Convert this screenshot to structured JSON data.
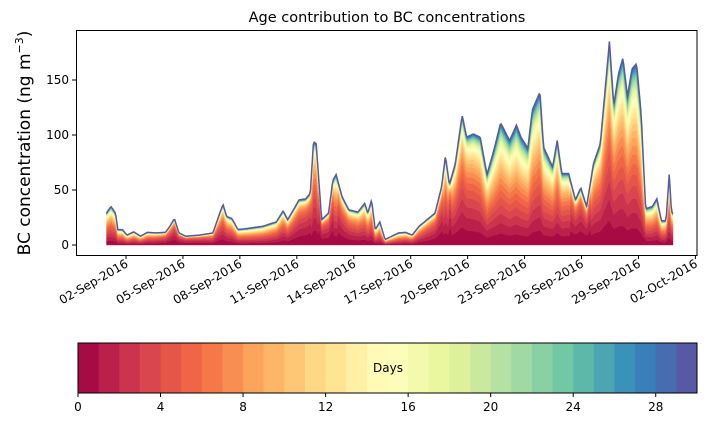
{
  "chart_data": {
    "type": "area",
    "title": "Age contribution to BC concentrations",
    "xlabel": "",
    "ylabel": "BC concentration (ng m",
    "ylabel_sup": "−3",
    "ylabel_close": ")",
    "ylim": [
      -9,
      195
    ],
    "yticks": [
      0,
      50,
      100,
      150
    ],
    "xlim_day_of_sep": [
      -0.8,
      32.3
    ],
    "xticks": [
      {
        "day": 2,
        "label": "02-Sep-2016"
      },
      {
        "day": 5,
        "label": "05-Sep-2016"
      },
      {
        "day": 8,
        "label": "08-Sep-2016"
      },
      {
        "day": 11,
        "label": "11-Sep-2016"
      },
      {
        "day": 14,
        "label": "14-Sep-2016"
      },
      {
        "day": 17,
        "label": "17-Sep-2016"
      },
      {
        "day": 20,
        "label": "20-Sep-2016"
      },
      {
        "day": 23,
        "label": "23-Sep-2016"
      },
      {
        "day": 26,
        "label": "26-Sep-2016"
      },
      {
        "day": 29,
        "label": "29-Sep-2016"
      },
      {
        "day": 32,
        "label": "02-Oct-2016"
      }
    ],
    "x_unit": "day of September 2016 (fractional)",
    "total_series": {
      "x": [
        0.97,
        1.21,
        1.45,
        1.57,
        1.81,
        2.05,
        2.41,
        2.76,
        3.12,
        3.6,
        4.08,
        4.31,
        4.55,
        4.79,
        5.15,
        5.87,
        6.58,
        6.94,
        7.11,
        7.3,
        7.58,
        7.9,
        8.37,
        9.2,
        9.92,
        10.28,
        10.52,
        11.12,
        11.47,
        11.71,
        11.88,
        12.02,
        12.31,
        12.67,
        12.9,
        13.07,
        13.38,
        13.74,
        14.22,
        14.58,
        14.74,
        14.94,
        15.13,
        15.37,
        15.65,
        16.0,
        16.37,
        16.73,
        17.08,
        17.44,
        18.28,
        18.63,
        18.83,
        19.04,
        19.35,
        19.71,
        19.95,
        20.3,
        20.66,
        21.02,
        21.38,
        21.74,
        22.21,
        22.57,
        22.81,
        23.17,
        23.41,
        23.81,
        24.0,
        24.24,
        24.48,
        24.72,
        24.96,
        25.32,
        25.68,
        25.96,
        26.27,
        26.63,
        26.99,
        27.47,
        27.7,
        27.94,
        28.18,
        28.42,
        28.66,
        28.9,
        29.14,
        29.38,
        29.73,
        29.97,
        30.21,
        30.45,
        30.62,
        30.74,
        30.86
      ],
      "y": [
        29,
        35,
        29,
        14,
        14,
        9,
        12,
        8,
        11.5,
        11,
        11.5,
        17,
        24,
        11,
        8,
        9,
        11,
        29,
        37,
        26,
        24,
        14,
        15,
        17,
        21,
        31,
        23,
        41,
        42,
        47,
        94,
        92,
        23,
        29,
        59,
        64,
        44,
        32,
        30,
        38,
        29,
        41,
        14,
        21,
        5,
        8,
        11,
        11.5,
        9,
        17,
        29,
        53,
        81,
        55,
        74,
        118,
        98,
        101,
        98,
        64,
        86,
        111,
        95,
        109,
        98,
        88,
        123,
        139,
        89,
        80,
        71,
        95,
        65,
        65,
        41,
        52,
        35,
        74,
        92,
        185,
        127,
        155,
        170,
        135,
        160,
        165,
        120,
        33,
        35,
        42,
        22,
        22,
        64,
        30,
        28
      ]
    },
    "age_bins_days": 30,
    "colormap": "Spectral",
    "colormap_anchors": [
      "#9e0142",
      "#d53e4f",
      "#f46d43",
      "#fdae61",
      "#fee08b",
      "#ffffbf",
      "#e6f598",
      "#abdda4",
      "#66c2a5",
      "#3288bd",
      "#5e4fa2"
    ],
    "colorbar": {
      "label": "Days",
      "range": [
        0,
        30
      ],
      "ticks": [
        0,
        4,
        8,
        12,
        16,
        20,
        24,
        28
      ]
    }
  }
}
